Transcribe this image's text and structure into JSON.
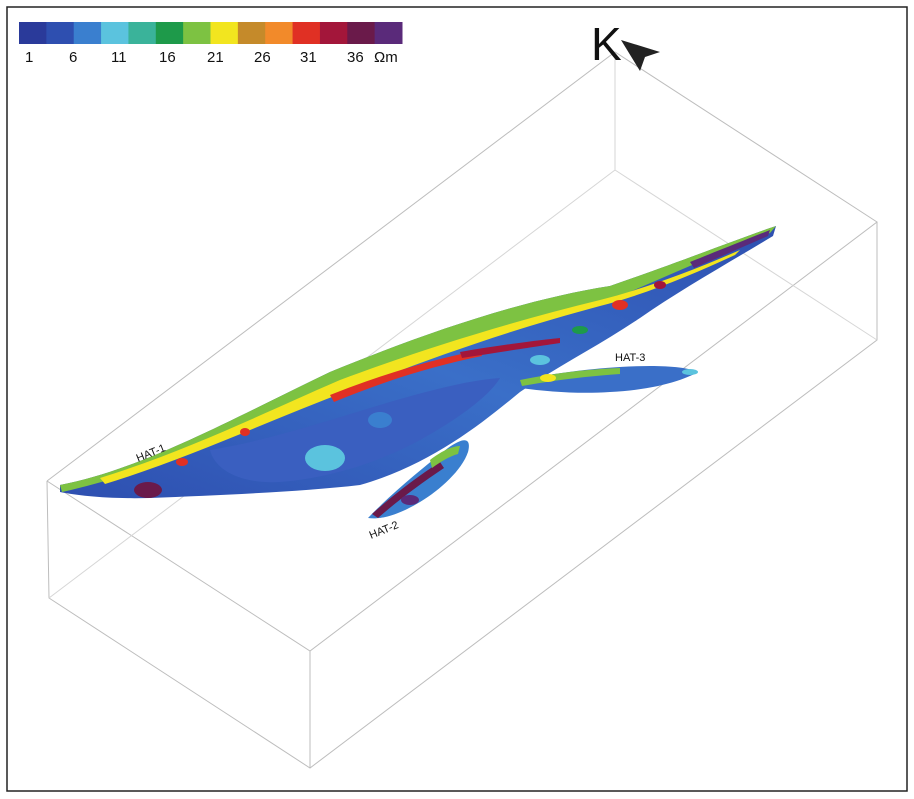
{
  "colorbar": {
    "colors": [
      "#2a3a9a",
      "#2e4fb0",
      "#3a7fcf",
      "#5bc3de",
      "#3ab39a",
      "#1e9a4a",
      "#7dc242",
      "#f2e51f",
      "#c58a2a",
      "#f28a2a",
      "#e03024",
      "#a3163a",
      "#6a1a4a",
      "#5a2a7a"
    ],
    "tick_labels": [
      "1",
      "6",
      "11",
      "16",
      "21",
      "26",
      "31",
      "36"
    ],
    "unit": "Ωm"
  },
  "north_label": "K",
  "profiles": [
    "HAT-1",
    "HAT-2",
    "HAT-3"
  ]
}
